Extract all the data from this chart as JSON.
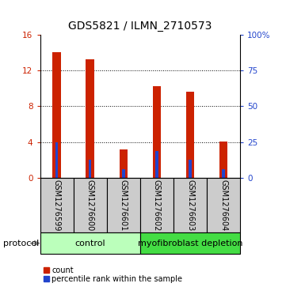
{
  "title": "GDS5821 / ILMN_2710573",
  "samples": [
    "GSM1276599",
    "GSM1276600",
    "GSM1276601",
    "GSM1276602",
    "GSM1276603",
    "GSM1276604"
  ],
  "count_values": [
    14.0,
    13.2,
    3.2,
    10.2,
    9.6,
    4.1
  ],
  "percentile_values": [
    25.0,
    12.5,
    6.25,
    18.75,
    12.5,
    6.25
  ],
  "left_ylim": [
    0,
    16
  ],
  "right_ylim": [
    0,
    100
  ],
  "left_yticks": [
    0,
    4,
    8,
    12,
    16
  ],
  "right_yticks": [
    0,
    25,
    50,
    75,
    100
  ],
  "right_yticklabels": [
    "0",
    "25",
    "50",
    "75",
    "100%"
  ],
  "bar_color_red": "#cc2200",
  "bar_color_blue": "#2244cc",
  "red_bar_width": 0.25,
  "blue_bar_width": 0.08,
  "grid_yticks": [
    4,
    8,
    12
  ],
  "protocol_groups": [
    {
      "label": "control",
      "samples": [
        0,
        1,
        2
      ],
      "color": "#bbffbb"
    },
    {
      "label": "myofibroblast depletion",
      "samples": [
        3,
        4,
        5
      ],
      "color": "#44dd44"
    }
  ],
  "protocol_label": "protocol",
  "legend_count_label": "count",
  "legend_percentile_label": "percentile rank within the sample",
  "sample_box_color": "#cccccc",
  "title_fontsize": 10,
  "tick_fontsize": 7.5,
  "sample_fontsize": 7,
  "protocol_fontsize": 8,
  "legend_fontsize": 7
}
